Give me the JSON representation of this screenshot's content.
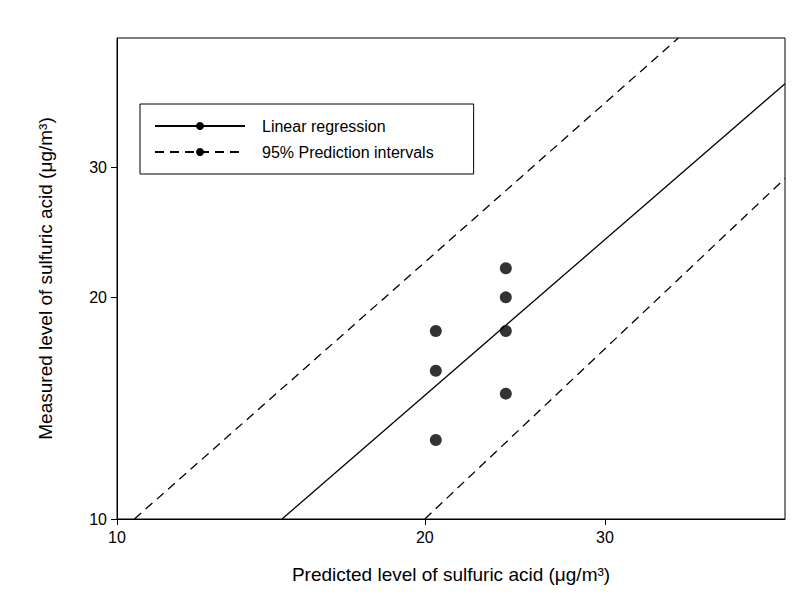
{
  "chart_data": {
    "type": "scatter",
    "x_label": "Predicted level of sulfuric acid (μg/m³)",
    "y_label": "Measured level of sulfuric acid (μg/m³)",
    "log": true,
    "grid": false,
    "legend": "upper left",
    "xlim": [
      10,
      45
    ],
    "ylim": [
      10,
      45
    ],
    "xticks": [
      10,
      20,
      30
    ],
    "yticks": [
      10,
      20,
      30
    ],
    "series": [
      {
        "type": "scatter",
        "marker": "circle",
        "color": "#000000",
        "x": [
          20.5,
          20.5,
          20.5,
          24.0,
          24.0,
          24.0,
          24.0
        ],
        "y": [
          18,
          15.9,
          12.8,
          21.9,
          20,
          18,
          14.8
        ]
      },
      {
        "name": "Linear regression",
        "type": "line",
        "line_style": "solid",
        "color": "#000000",
        "x": [
          14.5,
          45
        ],
        "y": [
          10,
          39
        ]
      },
      {
        "name": "95% Prediction intervals",
        "type": "line",
        "line_style": "dashed",
        "color": "#000000",
        "x": [
          10.4,
          35.4,
          null,
          20,
          45
        ],
        "y": [
          10,
          45,
          null,
          10,
          29
        ]
      }
    ]
  }
}
